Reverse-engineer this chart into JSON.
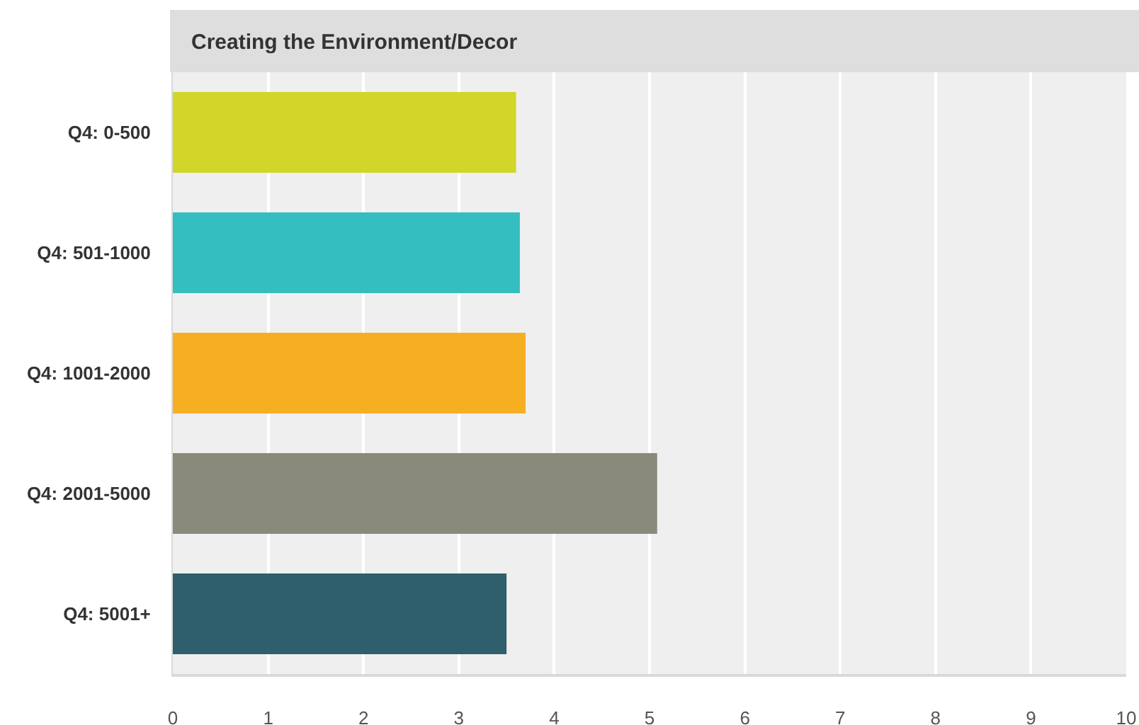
{
  "chart_data": {
    "type": "bar",
    "orientation": "horizontal",
    "title": "Creating the Environment/Decor",
    "categories": [
      "Q4: 0-500",
      "Q4: 501-1000",
      "Q4: 1001-2000",
      "Q4: 2001-5000",
      "Q4: 5001+"
    ],
    "values": [
      3.6,
      3.64,
      3.7,
      5.08,
      3.5
    ],
    "colors": [
      "#d1d628",
      "#34bec0",
      "#f7af22",
      "#898a7a",
      "#2f5f6c"
    ],
    "xlim": [
      0,
      10
    ],
    "xticks": [
      0,
      1,
      2,
      3,
      4,
      5,
      6,
      7,
      8,
      9,
      10
    ],
    "grid": "x"
  }
}
